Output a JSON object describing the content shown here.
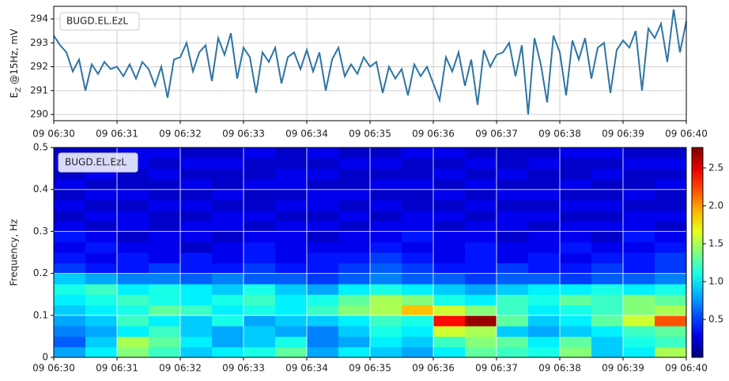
{
  "chart_data": [
    {
      "type": "line",
      "ylabel": "E",
      "ylabel_sub": "Z",
      "ylabel_rest": " @15Hz, mV",
      "categories": [
        "09 06:30",
        null,
        null,
        null,
        null,
        null,
        null,
        null,
        null,
        null,
        "09 06:31",
        null,
        null,
        null,
        null,
        null,
        null,
        null,
        null,
        null,
        "09 06:32",
        null,
        null,
        null,
        null,
        null,
        null,
        null,
        null,
        null,
        "09 06:33",
        null,
        null,
        null,
        null,
        null,
        null,
        null,
        null,
        null,
        "09 06:34",
        null,
        null,
        null,
        null,
        null,
        null,
        null,
        null,
        null,
        "09 06:35",
        null,
        null,
        null,
        null,
        null,
        null,
        null,
        null,
        null,
        "09 06:36",
        null,
        null,
        null,
        null,
        null,
        null,
        null,
        null,
        null,
        "09 06:37",
        null,
        null,
        null,
        null,
        null,
        null,
        null,
        null,
        null,
        "09 06:38",
        null,
        null,
        null,
        null,
        null,
        null,
        null,
        null,
        null,
        "09 06:39",
        null,
        null,
        null,
        null,
        null,
        null,
        null,
        null,
        null,
        "09 06:40"
      ],
      "series": [
        {
          "name": "BUGD.EL.EzL",
          "color": "#2e74a3",
          "values": [
            293.3,
            292.9,
            292.6,
            291.8,
            292.3,
            291.0,
            292.1,
            291.7,
            292.2,
            291.9,
            292.0,
            291.6,
            292.1,
            291.5,
            292.2,
            291.9,
            291.2,
            292.0,
            290.7,
            292.3,
            292.4,
            293.0,
            291.8,
            292.6,
            292.9,
            291.4,
            293.2,
            292.5,
            293.4,
            291.5,
            292.8,
            292.4,
            290.9,
            292.6,
            292.2,
            292.8,
            291.3,
            292.4,
            292.6,
            291.9,
            292.7,
            291.8,
            292.6,
            291.0,
            292.3,
            292.8,
            291.6,
            292.1,
            291.7,
            292.4,
            292.0,
            292.2,
            290.9,
            292.0,
            291.5,
            291.9,
            290.8,
            292.1,
            291.6,
            292.0,
            291.3,
            290.6,
            292.4,
            291.8,
            292.6,
            291.2,
            292.3,
            290.4,
            292.7,
            292.0,
            292.5,
            292.6,
            293.0,
            291.6,
            292.9,
            290.0,
            293.2,
            292.1,
            290.5,
            293.3,
            292.6,
            290.8,
            293.1,
            292.3,
            293.2,
            291.5,
            292.8,
            293.0,
            290.9,
            292.7,
            293.1,
            292.8,
            293.5,
            291.0,
            293.6,
            293.2,
            293.8,
            292.2,
            294.4,
            292.6,
            293.9
          ]
        }
      ],
      "ylim": [
        289.74,
        294.53
      ],
      "yticks": [
        290,
        291,
        292,
        293,
        294
      ],
      "grid": true
    },
    {
      "type": "heatmap",
      "label": "BUGD.EL.EzL",
      "ylabel": "Frequency, Hz",
      "xticks": [
        "09 06:30",
        "09 06:31",
        "09 06:32",
        "09 06:33",
        "09 06:34",
        "09 06:35",
        "09 06:36",
        "09 06:37",
        "09 06:38",
        "09 06:39",
        "09 06:40"
      ],
      "ylim": [
        0,
        0.5
      ],
      "yticks": [
        0,
        0.1,
        0.2,
        0.3,
        0.4,
        0.5
      ],
      "ybins": [
        0,
        0.025,
        0.05,
        0.075,
        0.1,
        0.125,
        0.15,
        0.175,
        0.2,
        0.225,
        0.25,
        0.275,
        0.3,
        0.325,
        0.35,
        0.375,
        0.4,
        0.425,
        0.45,
        0.475,
        0.5
      ],
      "z": [
        [
          0.8,
          1.0,
          1.4,
          1.2,
          0.9,
          1.0,
          1.1,
          1.3,
          0.8,
          1.0,
          0.9,
          0.8,
          1.0,
          1.3,
          1.2,
          1.1,
          1.4,
          0.9,
          1.0,
          1.5
        ],
        [
          0.6,
          0.9,
          1.5,
          1.3,
          1.0,
          0.8,
          0.9,
          1.1,
          0.7,
          0.8,
          1.0,
          0.9,
          1.2,
          1.4,
          1.3,
          1.0,
          1.3,
          0.9,
          1.1,
          1.2
        ],
        [
          0.7,
          0.8,
          1.0,
          1.2,
          0.9,
          0.8,
          0.9,
          0.8,
          0.7,
          0.9,
          1.1,
          1.0,
          1.6,
          1.5,
          0.9,
          0.8,
          0.9,
          1.0,
          1.2,
          1.3
        ],
        [
          0.8,
          0.9,
          1.2,
          1.0,
          0.9,
          1.1,
          0.8,
          0.9,
          0.9,
          1.0,
          1.2,
          1.1,
          2.4,
          2.7,
          1.3,
          0.9,
          1.0,
          1.3,
          1.6,
          2.2
        ],
        [
          0.9,
          1.0,
          1.1,
          1.3,
          1.2,
          1.0,
          1.1,
          1.0,
          1.2,
          1.4,
          1.5,
          1.9,
          1.6,
          1.4,
          1.2,
          1.0,
          1.1,
          1.2,
          1.4,
          1.5
        ],
        [
          1.0,
          1.1,
          1.2,
          1.1,
          1.0,
          1.1,
          1.2,
          1.0,
          1.1,
          1.3,
          1.5,
          1.4,
          1.1,
          1.0,
          1.2,
          1.1,
          1.3,
          1.2,
          1.4,
          1.3
        ],
        [
          1.1,
          1.2,
          1.0,
          1.1,
          1.0,
          0.9,
          1.1,
          0.9,
          0.8,
          1.0,
          1.1,
          1.0,
          0.9,
          0.8,
          0.9,
          1.0,
          1.0,
          1.1,
          1.0,
          1.1
        ],
        [
          0.9,
          0.8,
          0.7,
          0.7,
          0.6,
          0.7,
          0.6,
          0.6,
          0.5,
          0.6,
          0.7,
          0.6,
          0.6,
          0.5,
          0.6,
          0.6,
          0.5,
          0.6,
          0.6,
          0.7
        ],
        [
          0.5,
          0.4,
          0.4,
          0.5,
          0.4,
          0.4,
          0.5,
          0.4,
          0.4,
          0.5,
          0.6,
          0.5,
          0.4,
          0.4,
          0.5,
          0.4,
          0.4,
          0.5,
          0.4,
          0.5
        ],
        [
          0.4,
          0.3,
          0.4,
          0.3,
          0.4,
          0.3,
          0.4,
          0.3,
          0.4,
          0.4,
          0.5,
          0.4,
          0.3,
          0.4,
          0.3,
          0.4,
          0.3,
          0.4,
          0.4,
          0.5
        ],
        [
          0.3,
          0.4,
          0.3,
          0.3,
          0.2,
          0.3,
          0.4,
          0.3,
          0.3,
          0.3,
          0.4,
          0.3,
          0.3,
          0.4,
          0.3,
          0.3,
          0.4,
          0.3,
          0.3,
          0.4
        ],
        [
          0.4,
          0.3,
          0.2,
          0.3,
          0.3,
          0.2,
          0.3,
          0.3,
          0.2,
          0.3,
          0.3,
          0.4,
          0.3,
          0.3,
          0.2,
          0.3,
          0.3,
          0.2,
          0.4,
          0.3
        ],
        [
          0.3,
          0.2,
          0.3,
          0.2,
          0.3,
          0.3,
          0.2,
          0.3,
          0.3,
          0.2,
          0.3,
          0.3,
          0.2,
          0.3,
          0.3,
          0.2,
          0.3,
          0.3,
          0.3,
          0.2
        ],
        [
          0.2,
          0.3,
          0.3,
          0.2,
          0.2,
          0.3,
          0.3,
          0.2,
          0.2,
          0.3,
          0.2,
          0.3,
          0.3,
          0.2,
          0.3,
          0.3,
          0.2,
          0.2,
          0.3,
          0.3
        ],
        [
          0.3,
          0.2,
          0.2,
          0.3,
          0.3,
          0.2,
          0.2,
          0.3,
          0.3,
          0.2,
          0.3,
          0.2,
          0.2,
          0.3,
          0.2,
          0.2,
          0.3,
          0.3,
          0.2,
          0.2
        ],
        [
          0.2,
          0.3,
          0.3,
          0.2,
          0.2,
          0.3,
          0.2,
          0.2,
          0.3,
          0.3,
          0.2,
          0.2,
          0.3,
          0.2,
          0.3,
          0.3,
          0.2,
          0.2,
          0.3,
          0.2
        ],
        [
          0.3,
          0.2,
          0.2,
          0.2,
          0.3,
          0.2,
          0.3,
          0.3,
          0.2,
          0.2,
          0.3,
          0.3,
          0.2,
          0.3,
          0.2,
          0.2,
          0.3,
          0.2,
          0.2,
          0.3
        ],
        [
          0.2,
          0.3,
          0.2,
          0.3,
          0.2,
          0.2,
          0.2,
          0.3,
          0.3,
          0.2,
          0.2,
          0.2,
          0.3,
          0.2,
          0.3,
          0.2,
          0.2,
          0.3,
          0.2,
          0.2
        ],
        [
          0.3,
          0.2,
          0.3,
          0.2,
          0.3,
          0.3,
          0.2,
          0.2,
          0.2,
          0.3,
          0.3,
          0.2,
          0.2,
          0.3,
          0.2,
          0.3,
          0.2,
          0.2,
          0.3,
          0.3
        ],
        [
          0.2,
          0.2,
          0.3,
          0.3,
          0.2,
          0.2,
          0.3,
          0.2,
          0.3,
          0.2,
          0.2,
          0.3,
          0.3,
          0.2,
          0.2,
          0.2,
          0.3,
          0.3,
          0.2,
          0.2
        ]
      ],
      "zlim": [
        0,
        2.77
      ],
      "zticks": [
        0.5,
        {
          "value": 1,
          "label": "1.0"
        },
        1.5,
        {
          "value": 2,
          "label": "2.0"
        },
        2.5
      ],
      "grid": true,
      "colormap": "jet"
    }
  ]
}
